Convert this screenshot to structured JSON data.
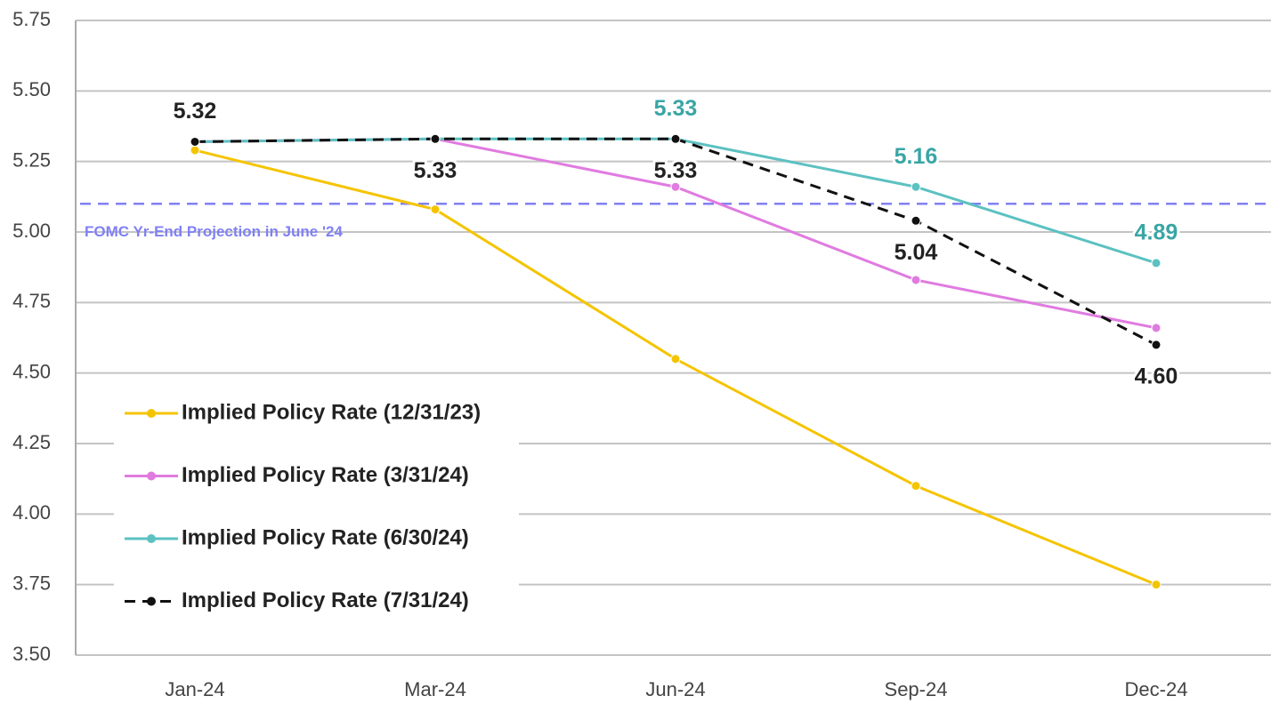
{
  "chart_data": {
    "type": "line",
    "categories": [
      "Jan-24",
      "Mar-24",
      "Jun-24",
      "Sep-24",
      "Dec-24"
    ],
    "series": [
      {
        "name": "Implied Policy Rate (12/31/23)",
        "color": "#f5c400",
        "values": [
          5.29,
          5.08,
          4.55,
          4.1,
          3.75
        ]
      },
      {
        "name": "Implied Policy Rate (3/31/24)",
        "color": "#e07be0",
        "values": [
          5.32,
          5.33,
          5.16,
          4.83,
          4.66
        ]
      },
      {
        "name": "Implied Policy Rate (6/30/24)",
        "color": "#5cc1c1",
        "values": [
          5.32,
          5.33,
          5.33,
          5.16,
          4.89
        ],
        "value_labels": [
          null,
          null,
          "5.33",
          "5.16",
          "4.89"
        ],
        "label_color": "#3aa5a5"
      },
      {
        "name": "Implied Policy Rate (7/31/24)",
        "color": "#111111",
        "dashed": true,
        "values": [
          5.32,
          5.33,
          5.33,
          5.04,
          4.6
        ],
        "value_labels": [
          "5.32",
          "5.33",
          "5.33",
          "5.04",
          "4.60"
        ],
        "label_color": "#222222"
      }
    ],
    "reference_line": {
      "value": 5.1,
      "label": "FOMC Yr-End Projection in June '24",
      "color": "#8080f5"
    },
    "ylim": [
      3.5,
      5.75
    ],
    "yticks": [
      {
        "value": 3.5,
        "label": "3.50"
      },
      3.75,
      {
        "value": 4,
        "label": "4.00"
      },
      4.25,
      {
        "value": 4.5,
        "label": "4.50"
      },
      4.75,
      {
        "value": 5,
        "label": "5.00"
      },
      5.25,
      {
        "value": 5.5,
        "label": "5.50"
      },
      5.75
    ],
    "grid": true
  }
}
